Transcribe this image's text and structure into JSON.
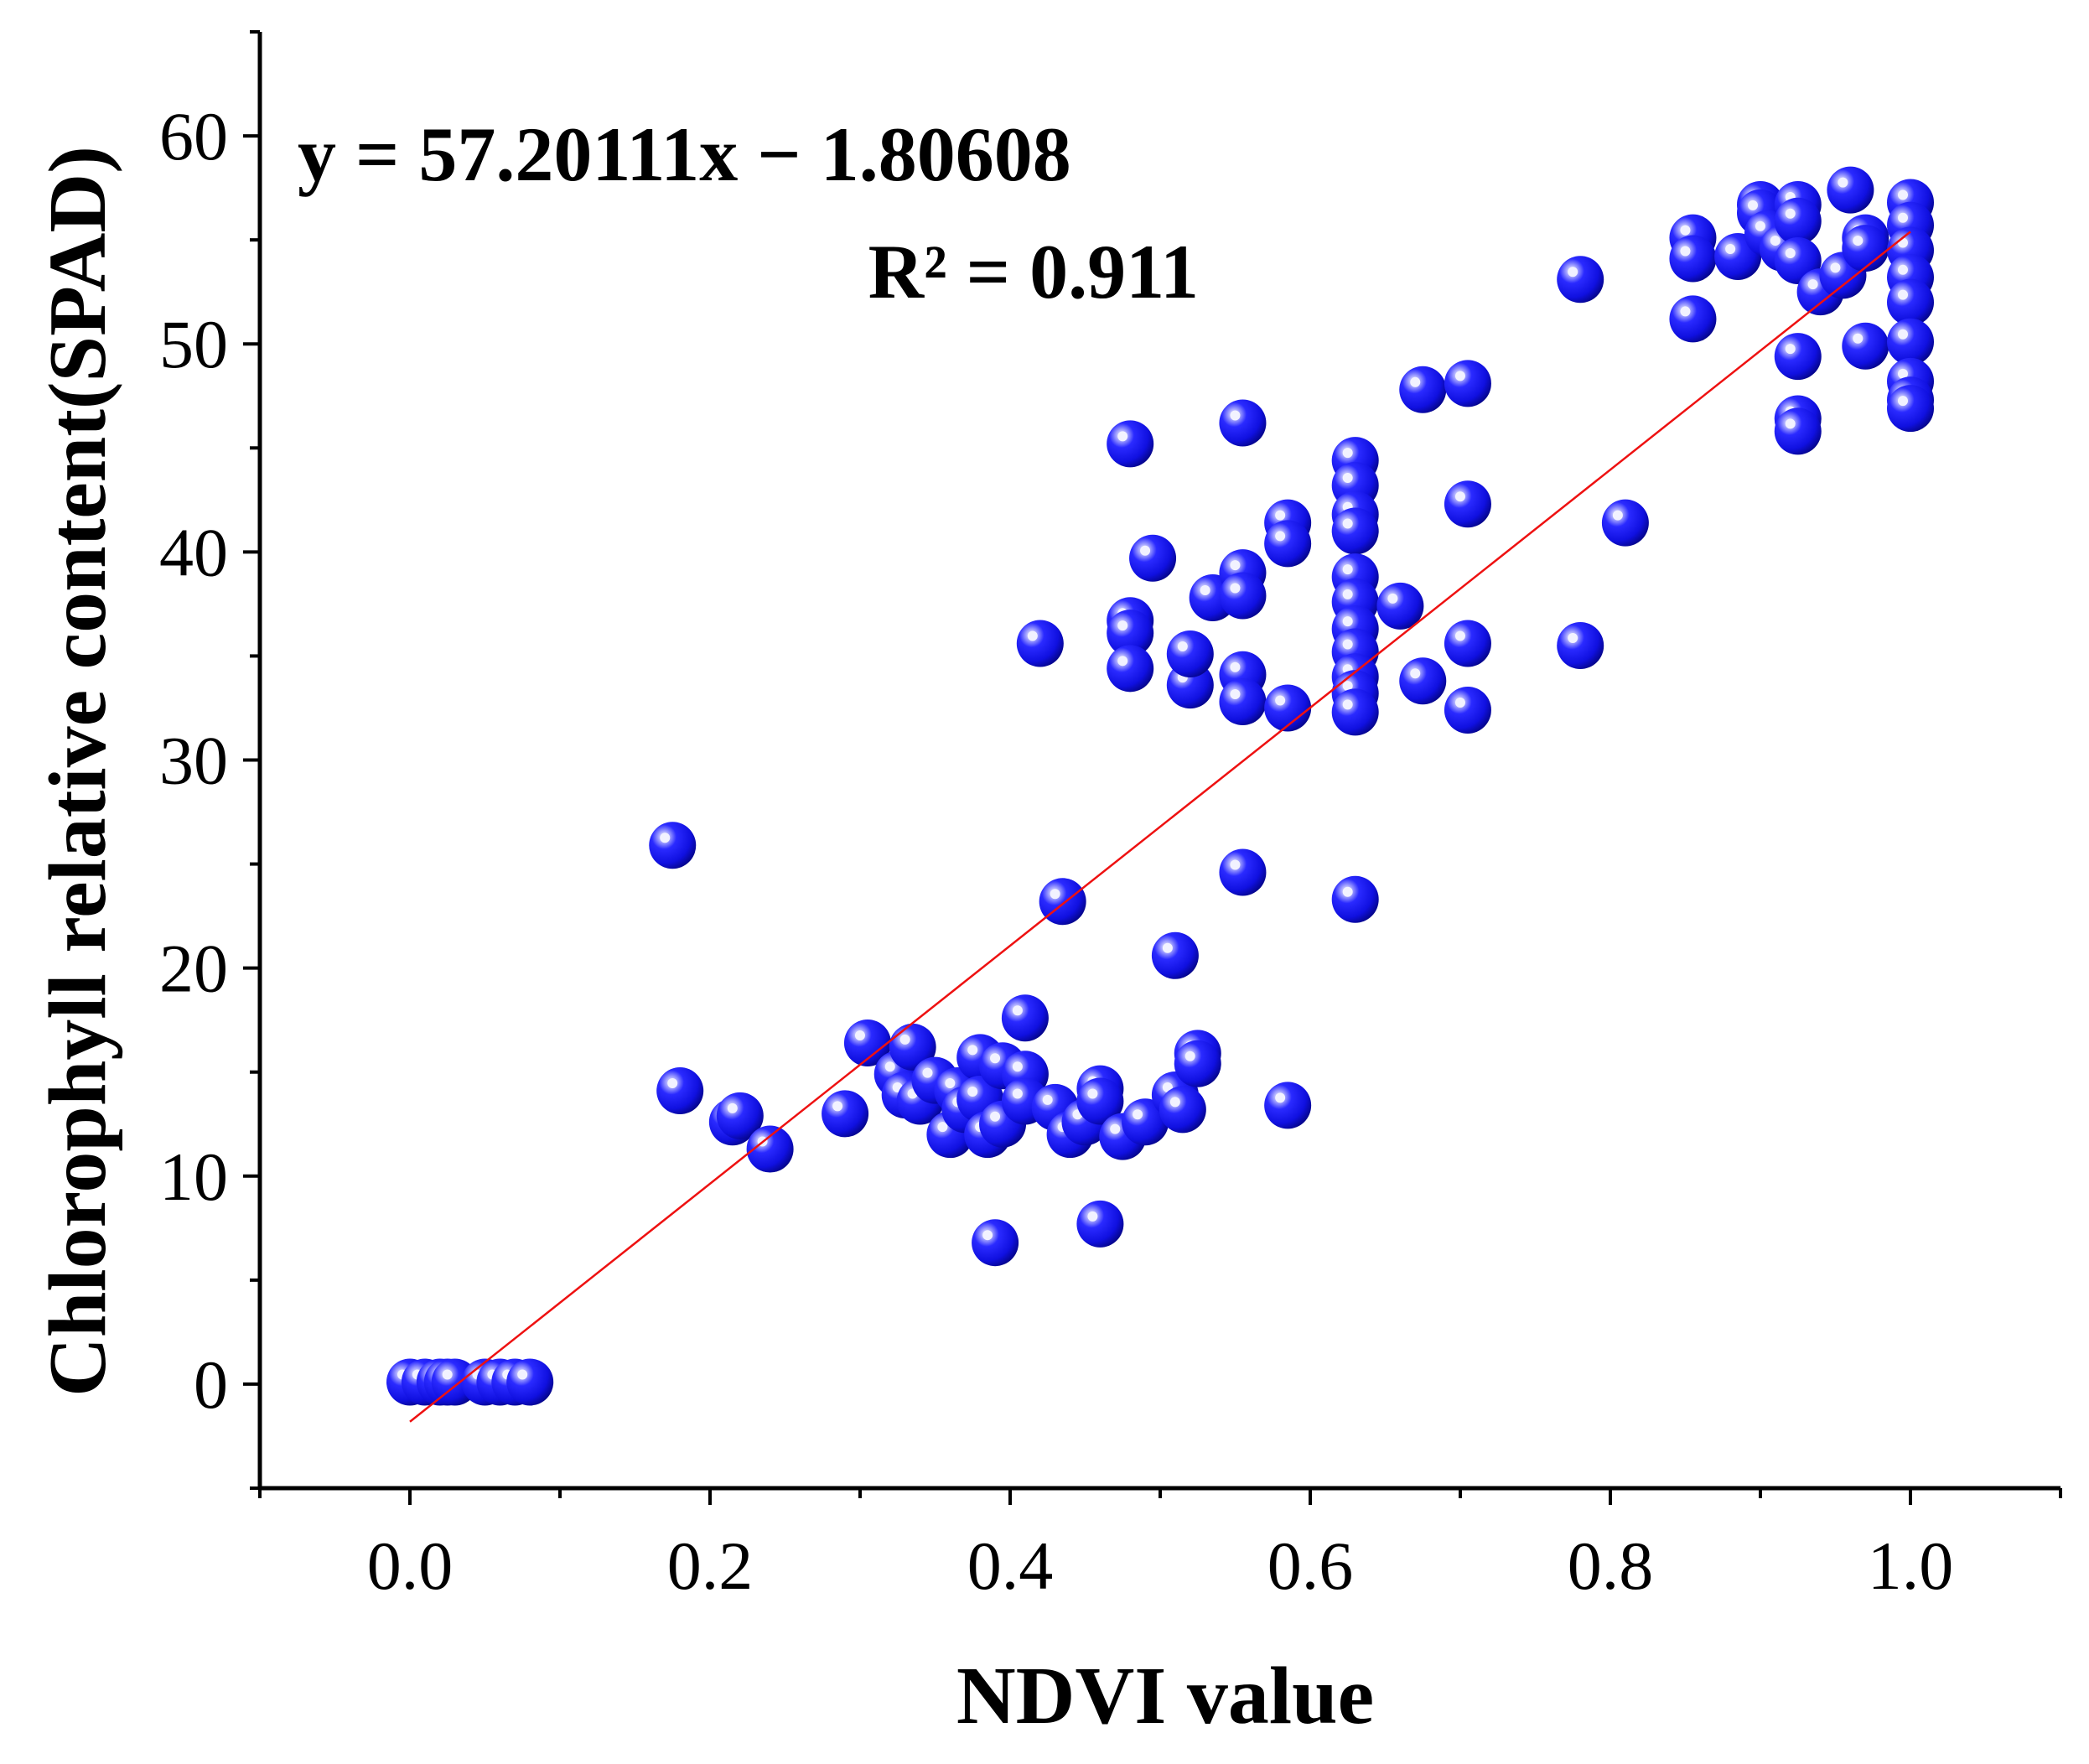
{
  "colors": {
    "point": "#1010ee",
    "point_highlight": "#f2f2ff",
    "fit_line": "#ee1111",
    "axis": "#000000"
  },
  "chart_data": {
    "type": "scatter",
    "title": "",
    "xlabel": "NDVI value",
    "ylabel": "Chlorophyll relative content(SPAD)",
    "xlim": [
      -0.1,
      1.1
    ],
    "ylim": [
      -5,
      65
    ],
    "xticks": [
      0.0,
      0.2,
      0.4,
      0.6,
      0.8,
      1.0
    ],
    "xtick_labels": [
      "0.0",
      "0.2",
      "0.4",
      "0.6",
      "0.8",
      "1.0"
    ],
    "yticks": [
      0,
      10,
      20,
      30,
      40,
      50,
      60
    ],
    "ytick_labels": [
      "0",
      "10",
      "20",
      "30",
      "40",
      "50",
      "60"
    ],
    "grid": false,
    "annotations": {
      "equation": "y = 57.20111x − 1.80608",
      "r_squared": "R² = 0.911"
    },
    "fit_line": {
      "slope": 57.20111,
      "intercept": -1.80608,
      "x_range": [
        0.0,
        1.0
      ]
    },
    "series": [
      {
        "name": "samples",
        "points": [
          [
            0.0,
            0.1
          ],
          [
            0.01,
            0.1
          ],
          [
            0.02,
            0.1
          ],
          [
            0.025,
            0.1
          ],
          [
            0.03,
            0.1
          ],
          [
            0.05,
            0.1
          ],
          [
            0.06,
            0.1
          ],
          [
            0.07,
            0.1
          ],
          [
            0.08,
            0.1
          ],
          [
            0.175,
            25.9
          ],
          [
            0.18,
            14.1
          ],
          [
            0.215,
            12.6
          ],
          [
            0.22,
            12.9
          ],
          [
            0.24,
            11.3
          ],
          [
            0.29,
            13.0
          ],
          [
            0.305,
            16.4
          ],
          [
            0.325,
            14.9
          ],
          [
            0.33,
            13.9
          ],
          [
            0.335,
            16.2
          ],
          [
            0.34,
            13.6
          ],
          [
            0.35,
            14.6
          ],
          [
            0.36,
            12.0
          ],
          [
            0.365,
            14.1
          ],
          [
            0.37,
            13.2
          ],
          [
            0.38,
            15.7
          ],
          [
            0.38,
            13.7
          ],
          [
            0.385,
            12.0
          ],
          [
            0.39,
            6.8
          ],
          [
            0.395,
            12.5
          ],
          [
            0.395,
            15.3
          ],
          [
            0.41,
            17.6
          ],
          [
            0.41,
            14.9
          ],
          [
            0.41,
            13.6
          ],
          [
            0.42,
            35.6
          ],
          [
            0.43,
            13.3
          ],
          [
            0.435,
            23.2
          ],
          [
            0.44,
            12.0
          ],
          [
            0.45,
            12.6
          ],
          [
            0.46,
            14.2
          ],
          [
            0.46,
            13.6
          ],
          [
            0.46,
            7.7
          ],
          [
            0.475,
            11.9
          ],
          [
            0.48,
            45.2
          ],
          [
            0.48,
            36.7
          ],
          [
            0.48,
            36.1
          ],
          [
            0.48,
            34.4
          ],
          [
            0.49,
            12.6
          ],
          [
            0.495,
            39.7
          ],
          [
            0.51,
            20.6
          ],
          [
            0.51,
            13.9
          ],
          [
            0.515,
            13.2
          ],
          [
            0.52,
            33.6
          ],
          [
            0.52,
            35.1
          ],
          [
            0.525,
            15.9
          ],
          [
            0.525,
            15.4
          ],
          [
            0.535,
            37.8
          ],
          [
            0.555,
            46.2
          ],
          [
            0.555,
            39.0
          ],
          [
            0.555,
            37.9
          ],
          [
            0.555,
            34.1
          ],
          [
            0.555,
            32.8
          ],
          [
            0.555,
            24.6
          ],
          [
            0.585,
            41.4
          ],
          [
            0.585,
            40.4
          ],
          [
            0.585,
            32.5
          ],
          [
            0.585,
            13.4
          ],
          [
            0.63,
            44.4
          ],
          [
            0.63,
            43.2
          ],
          [
            0.63,
            41.8
          ],
          [
            0.63,
            41.0
          ],
          [
            0.63,
            38.8
          ],
          [
            0.63,
            37.6
          ],
          [
            0.63,
            36.3
          ],
          [
            0.63,
            35.2
          ],
          [
            0.63,
            34.0
          ],
          [
            0.63,
            33.2
          ],
          [
            0.63,
            32.3
          ],
          [
            0.63,
            23.3
          ],
          [
            0.66,
            37.4
          ],
          [
            0.675,
            47.8
          ],
          [
            0.675,
            33.8
          ],
          [
            0.705,
            48.1
          ],
          [
            0.705,
            42.3
          ],
          [
            0.705,
            35.6
          ],
          [
            0.705,
            32.4
          ],
          [
            0.78,
            53.1
          ],
          [
            0.78,
            35.5
          ],
          [
            0.81,
            41.4
          ],
          [
            0.855,
            55.1
          ],
          [
            0.855,
            54.1
          ],
          [
            0.855,
            51.2
          ],
          [
            0.885,
            54.2
          ],
          [
            0.9,
            56.7
          ],
          [
            0.9,
            56.3
          ],
          [
            0.905,
            55.3
          ],
          [
            0.915,
            54.6
          ],
          [
            0.925,
            56.7
          ],
          [
            0.925,
            55.9
          ],
          [
            0.925,
            54.0
          ],
          [
            0.925,
            49.4
          ],
          [
            0.925,
            46.4
          ],
          [
            0.925,
            45.8
          ],
          [
            0.94,
            52.5
          ],
          [
            0.955,
            53.3
          ],
          [
            0.96,
            57.4
          ],
          [
            0.97,
            55.1
          ],
          [
            0.97,
            54.6
          ],
          [
            0.97,
            49.9
          ],
          [
            1.0,
            56.8
          ],
          [
            1.0,
            55.7
          ],
          [
            1.0,
            54.5
          ],
          [
            1.0,
            53.2
          ],
          [
            1.0,
            52.0
          ],
          [
            1.0,
            50.1
          ],
          [
            1.0,
            48.2
          ],
          [
            1.0,
            47.3
          ],
          [
            1.0,
            46.9
          ]
        ]
      }
    ]
  }
}
